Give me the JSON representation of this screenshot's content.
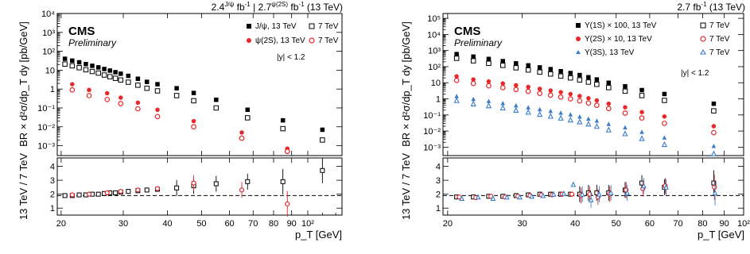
{
  "chart_data": [
    {
      "type": "scatter",
      "panel": "left",
      "title": "2.4^{J/ψ} fb^{-1} | 2.7^{ψ(2S)} fb^{-1} (13 TeV)",
      "title_parts": {
        "lumi1": "2.4",
        "sup1": "J/ψ",
        "unit1": " fb",
        "pipe": " | ",
        "lumi2": "2.7",
        "sup2": "ψ(2S)",
        "unit2": " fb",
        "energy": " (13 TeV)"
      },
      "cms_label": "CMS",
      "preliminary_label": "Preliminary",
      "selection_label": "|y| < 1.2",
      "xlabel": "p_T [GeV]",
      "ylabel_top": "BR × d²σ/dp_T dy [pb/GeV]",
      "ylabel_ratio": "13 TeV / 7 TeV",
      "x_scale": "log",
      "y_scale": "log",
      "xlim": [
        19.5,
        125
      ],
      "ylim": [
        0.0003,
        10000
      ],
      "ratio_ylim": [
        0.5,
        4.6
      ],
      "ratio_reference": 1.9,
      "x_tick_labels": [
        "20",
        "30",
        "40",
        "50",
        "60",
        "70",
        "80",
        "90",
        "10²"
      ],
      "x_tick_values": [
        20,
        30,
        40,
        50,
        60,
        70,
        80,
        90,
        100
      ],
      "y_tick_labels": [
        "10⁻³",
        "10⁻²",
        "10⁻¹",
        "1",
        "10",
        "10²",
        "10³",
        "10⁴"
      ],
      "y_tick_values": [
        0.001,
        0.01,
        0.1,
        1,
        10,
        100,
        1000,
        10000
      ],
      "ratio_tick_labels": [
        "1",
        "2",
        "3",
        "4"
      ],
      "ratio_tick_values": [
        1,
        2,
        3,
        4
      ],
      "legend_position": "top-right",
      "series": [
        {
          "name": "J/ψ, 13 TeV",
          "marker": "filled-square",
          "color": "#000000",
          "x": [
            20.5,
            21.5,
            22.5,
            23.5,
            24.5,
            25.5,
            26.5,
            27.5,
            28.5,
            29.5,
            31,
            33,
            35,
            37.5,
            42.5,
            47.5,
            55,
            67.5,
            85,
            110
          ],
          "y": [
            40,
            32,
            26,
            21,
            17,
            14,
            11.5,
            9.5,
            7.8,
            6.5,
            5,
            3.5,
            2.4,
            1.8,
            1.1,
            0.62,
            0.27,
            0.08,
            0.022,
            0.007
          ]
        },
        {
          "name": "7 TeV",
          "marker": "open-square",
          "color": "#000000",
          "x": [
            20.5,
            21.5,
            22.5,
            23.5,
            24.5,
            25.5,
            26.5,
            27.5,
            28.5,
            29.5,
            31,
            33,
            35,
            37.5,
            42.5,
            47.5,
            55,
            67.5,
            85,
            110
          ],
          "y": [
            21,
            17,
            13.5,
            10.5,
            8.5,
            7,
            5.5,
            4.5,
            3.7,
            3,
            2.3,
            1.6,
            1.1,
            0.8,
            0.45,
            0.24,
            0.1,
            0.03,
            0.008,
            0.002
          ]
        },
        {
          "name": "ψ(2S), 13 TeV",
          "marker": "filled-circle",
          "color": "#e8282b",
          "x": [
            21.5,
            24,
            27,
            29.5,
            33,
            37.5,
            47.5,
            65,
            87.5
          ],
          "y": [
            1.8,
            0.9,
            0.6,
            0.35,
            0.19,
            0.08,
            0.02,
            0.005,
            0.0007
          ]
        },
        {
          "name": "7 TeV",
          "marker": "open-circle",
          "color": "#e8282b",
          "x": [
            21.5,
            24,
            27,
            29.5,
            33,
            37.5,
            47.5,
            65,
            87.5
          ],
          "y": [
            0.9,
            0.45,
            0.28,
            0.17,
            0.09,
            0.035,
            0.01,
            0.0025,
            0.0005
          ]
        }
      ],
      "ratio_series": [
        {
          "name": "J/ψ ratio",
          "marker": "open-square",
          "color": "#000000",
          "x": [
            20.5,
            21.5,
            22.5,
            23.5,
            24.5,
            25.5,
            26.5,
            27.5,
            28.5,
            29.5,
            31,
            33,
            35,
            37.5,
            42.5,
            47.5,
            55,
            67.5,
            85,
            110
          ],
          "y": [
            1.9,
            1.9,
            1.95,
            1.95,
            2.0,
            2.0,
            2.05,
            2.1,
            2.1,
            2.15,
            2.2,
            2.25,
            2.3,
            2.35,
            2.45,
            2.6,
            2.75,
            2.9,
            2.9,
            3.7
          ]
        },
        {
          "name": "ψ(2S) ratio",
          "marker": "open-circle",
          "color": "#e8282b",
          "x": [
            21.5,
            24,
            27,
            29.5,
            33,
            37.5,
            47.5,
            65,
            87.5
          ],
          "y": [
            1.95,
            2.0,
            2.1,
            2.2,
            2.3,
            2.4,
            2.8,
            2.3,
            1.3
          ]
        }
      ]
    },
    {
      "type": "scatter",
      "panel": "right",
      "title": "2.7 fb^{-1} (13 TeV)",
      "title_parts": {
        "lumi": "2.7",
        "unit": " fb",
        "energy": " (13 TeV)"
      },
      "cms_label": "CMS",
      "preliminary_label": "Preliminary",
      "selection_label": "|y| < 1.2",
      "xlabel": "p_T [GeV]",
      "ylabel_top": "BR × d²σ/dp_T dy [pb/GeV]",
      "ylabel_ratio": "13 TeV / 7 TeV",
      "x_scale": "log",
      "y_scale": "log",
      "xlim": [
        19.5,
        100
      ],
      "ylim": [
        0.0003,
        200000
      ],
      "ratio_ylim": [
        0.5,
        4.6
      ],
      "ratio_reference": 1.9,
      "x_tick_labels": [
        "20",
        "30",
        "40",
        "50",
        "60",
        "70",
        "80",
        "90",
        "10²"
      ],
      "x_tick_values": [
        20,
        30,
        40,
        50,
        60,
        70,
        80,
        90,
        100
      ],
      "y_tick_labels": [
        "10⁻³",
        "10⁻²",
        "10⁻¹",
        "1",
        "10",
        "10²",
        "10³",
        "10⁴",
        "10⁵"
      ],
      "y_tick_values": [
        0.001,
        0.01,
        0.1,
        1,
        10,
        100,
        1000,
        10000,
        100000
      ],
      "ratio_tick_labels": [
        "1",
        "2",
        "3",
        "4"
      ],
      "ratio_tick_values": [
        1,
        2,
        3,
        4
      ],
      "legend_position": "top-right",
      "series": [
        {
          "name": "Υ(1S) × 100, 13 TeV",
          "marker": "filled-square",
          "color": "#000000",
          "x": [
            21,
            23,
            25,
            27,
            29,
            31,
            33,
            35,
            37,
            39,
            41,
            43,
            45,
            48,
            52.5,
            57.5,
            65,
            85
          ],
          "y": [
            600,
            420,
            300,
            220,
            160,
            120,
            90,
            70,
            52,
            40,
            30,
            22,
            16,
            10,
            6,
            3.5,
            2,
            0.5
          ]
        },
        {
          "name": "7 TeV",
          "marker": "open-square",
          "color": "#000000",
          "x": [
            21,
            23,
            25,
            27,
            29,
            31,
            33,
            35,
            37,
            39,
            41,
            43,
            45,
            48,
            52.5,
            57.5,
            65,
            85
          ],
          "y": [
            330,
            230,
            160,
            120,
            85,
            62,
            46,
            35,
            26,
            20,
            15,
            11,
            8,
            5,
            3,
            1.6,
            0.8,
            0.18
          ]
        },
        {
          "name": "Υ(2S) × 10, 13 TeV",
          "marker": "filled-circle",
          "color": "#e8282b",
          "x": [
            21,
            23,
            25,
            27,
            29,
            31,
            33,
            35,
            37,
            39,
            41,
            43,
            45,
            48,
            52.5,
            57.5,
            65,
            85
          ],
          "y": [
            25,
            16,
            12,
            9,
            7,
            5.5,
            4.2,
            3.3,
            2.6,
            2,
            1.5,
            1.1,
            0.8,
            0.5,
            0.3,
            0.15,
            0.08,
            0.02
          ]
        },
        {
          "name": "7 TeV",
          "marker": "open-circle",
          "color": "#e8282b",
          "x": [
            21,
            23,
            25,
            27,
            29,
            31,
            33,
            35,
            37,
            39,
            41,
            43,
            45,
            48,
            52.5,
            57.5,
            65,
            85
          ],
          "y": [
            14,
            9,
            6.5,
            5,
            3.8,
            2.9,
            2.2,
            1.7,
            1.3,
            1,
            0.75,
            0.55,
            0.4,
            0.25,
            0.13,
            0.065,
            0.03,
            0.008
          ]
        },
        {
          "name": "Υ(3S), 13 TeV",
          "marker": "filled-triangle",
          "color": "#3a7dc9",
          "x": [
            21,
            23,
            25,
            27,
            29,
            31,
            33,
            35,
            37,
            39,
            41,
            43,
            45,
            48,
            52.5,
            57.5,
            65,
            85
          ],
          "y": [
            1.5,
            1,
            0.75,
            0.55,
            0.4,
            0.3,
            0.23,
            0.18,
            0.14,
            0.11,
            0.08,
            0.06,
            0.045,
            0.028,
            0.017,
            0.009,
            0.004,
            0.0012
          ]
        },
        {
          "name": "7 TeV",
          "marker": "open-triangle",
          "color": "#3a7dc9",
          "x": [
            21,
            23,
            25,
            27,
            29,
            31,
            33,
            35,
            37,
            39,
            41,
            43,
            45,
            48,
            52.5,
            57.5,
            65,
            85
          ],
          "y": [
            0.8,
            0.5,
            0.38,
            0.28,
            0.2,
            0.15,
            0.11,
            0.085,
            0.065,
            0.05,
            0.038,
            0.028,
            0.02,
            0.012,
            0.007,
            0.0035,
            0.0015,
            0.0004
          ]
        }
      ],
      "ratio_series": [
        {
          "name": "Υ(1S) ratio",
          "marker": "open-square",
          "color": "#000000",
          "x": [
            21,
            23,
            25,
            27,
            29,
            31,
            33,
            35,
            37,
            39,
            41,
            43,
            45,
            48,
            52.5,
            57.5,
            65,
            85
          ],
          "y": [
            1.8,
            1.8,
            1.85,
            1.85,
            1.9,
            1.95,
            2.0,
            2.0,
            2.0,
            2.0,
            2.0,
            2.1,
            2.1,
            2.1,
            2.3,
            2.8,
            2.5,
            2.8
          ]
        },
        {
          "name": "Υ(2S) ratio",
          "marker": "open-circle",
          "color": "#e8282b",
          "x": [
            21.3,
            23.3,
            25.3,
            27.3,
            29.3,
            31.3,
            33.3,
            35.3,
            37.3,
            39.3,
            41.3,
            43.3,
            45.3,
            48.3,
            52.8,
            57.8,
            65.3,
            85.3
          ],
          "y": [
            1.8,
            1.75,
            1.85,
            1.8,
            1.85,
            1.9,
            1.95,
            1.95,
            2.0,
            2.0,
            1.9,
            2.0,
            1.8,
            2.0,
            2.3,
            2.4,
            2.6,
            2.5
          ]
        },
        {
          "name": "Υ(3S) ratio",
          "marker": "open-triangle",
          "color": "#3a7dc9",
          "x": [
            21.6,
            23.6,
            25.6,
            27.6,
            29.6,
            31.6,
            33.6,
            35.6,
            37.6,
            39.6,
            41.6,
            43.6,
            45.6,
            48.6,
            53.1,
            58.1,
            65.6,
            85.6
          ],
          "y": [
            1.7,
            1.8,
            1.7,
            1.8,
            1.8,
            1.85,
            1.9,
            2.0,
            2.05,
            2.7,
            2.0,
            1.6,
            2.0,
            2.1,
            2.1,
            2.6,
            2.5,
            2.1
          ]
        }
      ]
    }
  ]
}
